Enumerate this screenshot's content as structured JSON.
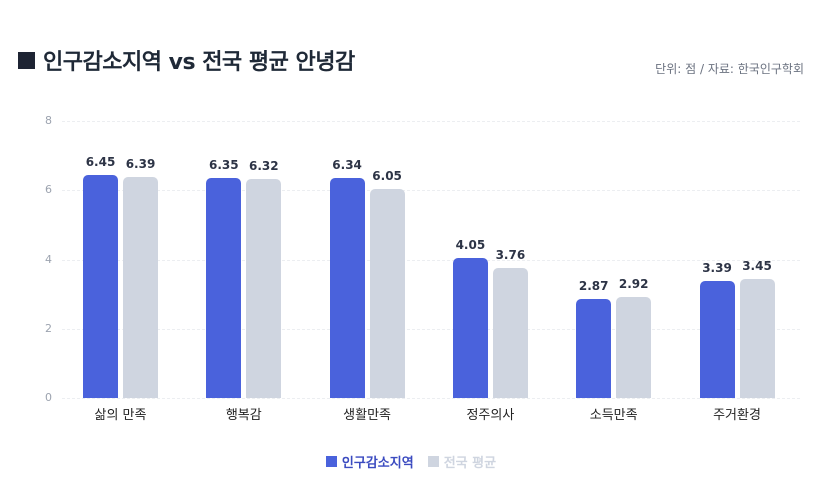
{
  "header": {
    "title": "인구감소지역 vs 전국 평균 안녕감",
    "title_icon": "black-square-icon",
    "source": "단위: 점 / 자료: 한국인구학회"
  },
  "colors": {
    "series_a": "#4a62dc",
    "series_b": "#cfd5e0",
    "title": "#1f2937",
    "label": "#2d3446"
  },
  "legend": {
    "items": [
      {
        "label": "인구감소지역",
        "color": "#4a62dc"
      },
      {
        "label": "전국 평균",
        "color": "#cfd5e0"
      }
    ]
  },
  "chart_data": {
    "type": "bar",
    "title": "인구감소지역 vs 전국 평균 안녕감",
    "subtitle": "단위: 점 / 자료: 한국인구학회",
    "xlabel": "",
    "ylabel": "",
    "ylim": [
      0,
      8
    ],
    "yticks": [
      "0",
      "2",
      "4",
      "6",
      "8"
    ],
    "grid": true,
    "legend_position": "bottom",
    "categories": [
      "삶의 만족",
      "행복감",
      "생활만족",
      "정주의사",
      "소득만족",
      "주거환경"
    ],
    "series": [
      {
        "name": "인구감소지역",
        "values": [
          6.45,
          6.35,
          6.34,
          4.05,
          2.87,
          3.39
        ]
      },
      {
        "name": "전국 평균",
        "values": [
          6.39,
          6.32,
          6.05,
          3.76,
          2.92,
          3.45
        ]
      }
    ],
    "value_labels": [
      [
        "6.45",
        "6.35",
        "6.34",
        "4.05",
        "2.87",
        "3.39"
      ],
      [
        "6.39",
        "6.32",
        "6.05",
        "3.76",
        "2.92",
        "3.45"
      ]
    ]
  }
}
